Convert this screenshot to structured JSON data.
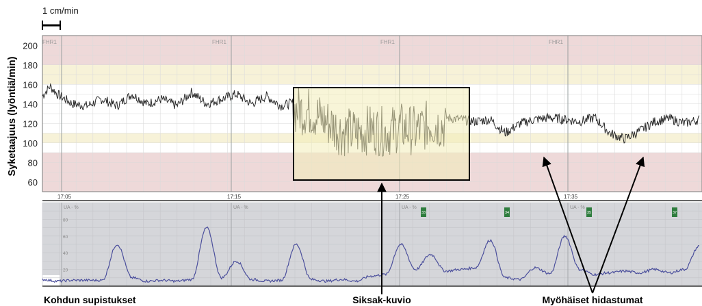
{
  "scale_bar": {
    "label": "1 cm/min"
  },
  "colors": {
    "red_band": "#eed9d9",
    "yellow_band": "#f7f2d8",
    "fhr_trace": "#2a2a2a",
    "toco_bg": "#d5d6da",
    "toco_trace": "#4b4f9c",
    "highlight_fill": "#f2ecb8",
    "marker_green": "#2f7d3e"
  },
  "chart_data": [
    {
      "type": "line",
      "title": "",
      "ylabel": "Syketaajuus (lyöntiä/min)",
      "xlabel": "",
      "ylim": [
        50,
        210
      ],
      "yticks": [
        60,
        80,
        100,
        120,
        140,
        160,
        180,
        200
      ],
      "channel_labels": [
        "FHR1",
        "FHR1",
        "FHR1",
        "FHR1"
      ],
      "time_labels": [
        "17:05",
        "17:15",
        "17:25",
        "17:35"
      ],
      "grid": true,
      "bands": [
        {
          "from": 180,
          "to": 210,
          "zone": "red"
        },
        {
          "from": 160,
          "to": 180,
          "zone": "yellow"
        },
        {
          "from": 100,
          "to": 110,
          "zone": "yellow"
        },
        {
          "from": 50,
          "to": 90,
          "zone": "red"
        }
      ],
      "series": [
        {
          "x": [
            0,
            0.5,
            1,
            2,
            3,
            4,
            5,
            6,
            7,
            8,
            9,
            10,
            11,
            12,
            13,
            14,
            15,
            16,
            17,
            18,
            19,
            20,
            21,
            22,
            23,
            24,
            25,
            26,
            27,
            28,
            29,
            30,
            31,
            32,
            33,
            34,
            35,
            36,
            37,
            38,
            39,
            40,
            41,
            42,
            43,
            44
          ],
          "y": [
            148,
            158,
            150,
            140,
            138,
            145,
            138,
            150,
            140,
            145,
            138,
            152,
            140,
            145,
            150,
            140,
            148,
            138,
            142,
            140,
            130,
            120,
            118,
            122,
            119,
            124,
            120,
            128,
            126,
            124,
            122,
            124,
            110,
            120,
            124,
            126,
            124,
            122,
            126,
            110,
            104,
            112,
            122,
            125,
            120,
            124
          ]
        }
      ]
    },
    {
      "type": "line",
      "title": "",
      "ylabel": "UA - %",
      "xlabel": "Kohdun supistukset",
      "ylim": [
        0,
        100
      ],
      "yticks": [
        20,
        40,
        60,
        80
      ],
      "contraction_markers": [
        "33",
        "34",
        "35",
        "37"
      ],
      "grid": true,
      "series": [
        {
          "x": [
            0,
            1,
            2,
            3,
            4,
            5,
            6,
            7,
            8,
            9,
            10,
            11,
            12,
            13,
            14,
            15,
            16,
            17,
            18,
            19,
            20,
            21,
            22,
            23,
            24,
            25,
            26,
            27,
            28,
            29,
            30,
            31,
            32,
            33,
            34,
            35,
            36,
            37,
            38,
            39,
            40,
            41,
            42,
            43,
            44
          ],
          "y": [
            8,
            6,
            7,
            7,
            7,
            50,
            10,
            6,
            7,
            6,
            8,
            70,
            10,
            30,
            8,
            6,
            7,
            50,
            8,
            6,
            8,
            6,
            12,
            14,
            50,
            20,
            38,
            18,
            20,
            22,
            55,
            10,
            8,
            22,
            15,
            60,
            20,
            14,
            16,
            18,
            16,
            20,
            16,
            20,
            48
          ]
        }
      ]
    }
  ],
  "annotations": {
    "zigzag": "Siksak-kuvio",
    "late_decels": "Myöhäiset hidastumat",
    "contractions": "Kohdun supistukset"
  }
}
